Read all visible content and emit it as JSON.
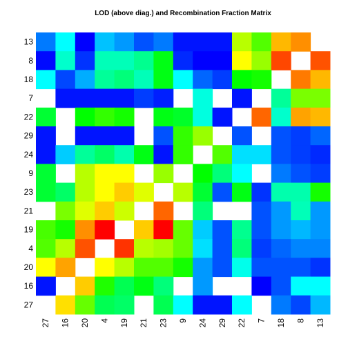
{
  "chart_data": {
    "type": "heatmap",
    "title": "LOD (above diag.) and Recombination Fraction Matrix",
    "x_categories": [
      "27",
      "16",
      "20",
      "4",
      "19",
      "21",
      "23",
      "9",
      "24",
      "29",
      "22",
      "7",
      "18",
      "8",
      "13"
    ],
    "y_categories": [
      "13",
      "8",
      "18",
      "7",
      "22",
      "29",
      "24",
      "9",
      "23",
      "21",
      "19",
      "4",
      "20",
      "16",
      "27"
    ],
    "colormap": "rainbow",
    "zlim": [
      0,
      1
    ],
    "values": [
      [
        0.12,
        0.25,
        0.0,
        0.19,
        0.15,
        0.08,
        0.12,
        0.02,
        0.02,
        0.02,
        0.68,
        0.58,
        0.82,
        0.86,
        null
      ],
      [
        0.01,
        0.3,
        0.05,
        0.32,
        0.32,
        0.36,
        0.48,
        0.04,
        0.0,
        0.0,
        0.75,
        0.65,
        0.93,
        null,
        0.92
      ],
      [
        0.25,
        0.07,
        0.17,
        0.35,
        0.38,
        0.32,
        0.48,
        0.25,
        0.1,
        0.06,
        0.5,
        0.52,
        null,
        0.88,
        0.82
      ],
      [
        null,
        0.02,
        0.02,
        0.02,
        0.02,
        0.06,
        0.03,
        null,
        0.28,
        null,
        0.02,
        null,
        0.35,
        0.62,
        0.62
      ],
      [
        0.45,
        null,
        0.5,
        0.55,
        0.52,
        null,
        0.48,
        0.46,
        0.28,
        0.02,
        null,
        0.9,
        0.3,
        0.84,
        0.82
      ],
      [
        0.02,
        null,
        0.02,
        0.02,
        0.02,
        null,
        0.08,
        0.55,
        0.65,
        null,
        0.08,
        null,
        0.08,
        0.06,
        0.1
      ],
      [
        0.02,
        0.2,
        0.35,
        0.4,
        0.33,
        0.48,
        0.02,
        0.55,
        null,
        0.58,
        0.22,
        0.22,
        0.08,
        0.06,
        0.04
      ],
      [
        0.45,
        null,
        0.68,
        0.75,
        0.75,
        null,
        0.65,
        null,
        0.5,
        0.38,
        0.25,
        null,
        0.12,
        0.08,
        0.06
      ],
      [
        0.45,
        0.4,
        0.68,
        0.75,
        0.8,
        0.72,
        null,
        0.68,
        0.45,
        0.08,
        0.48,
        0.05,
        0.33,
        0.33,
        0.52
      ],
      [
        null,
        0.62,
        0.72,
        0.8,
        0.7,
        null,
        0.9,
        null,
        0.38,
        null,
        null,
        0.08,
        0.15,
        0.32,
        0.15
      ],
      [
        0.57,
        0.52,
        0.86,
        1.0,
        null,
        0.8,
        1.0,
        0.6,
        0.2,
        0.08,
        0.36,
        0.08,
        0.15,
        0.18,
        0.15
      ],
      [
        0.58,
        0.68,
        0.92,
        null,
        0.95,
        0.68,
        0.66,
        0.6,
        0.22,
        0.08,
        0.38,
        0.06,
        0.1,
        0.13,
        0.13
      ],
      [
        0.75,
        0.84,
        null,
        0.75,
        0.68,
        0.58,
        0.58,
        0.52,
        0.15,
        0.08,
        0.27,
        0.08,
        0.08,
        0.08,
        0.05
      ],
      [
        0.02,
        null,
        0.8,
        0.53,
        0.42,
        0.48,
        0.38,
        null,
        0.15,
        null,
        null,
        0.0,
        0.08,
        0.25,
        0.25
      ],
      [
        null,
        0.78,
        0.6,
        0.42,
        0.4,
        null,
        0.42,
        0.25,
        0.02,
        0.02,
        0.25,
        null,
        0.12,
        0.07,
        0.18
      ]
    ]
  }
}
